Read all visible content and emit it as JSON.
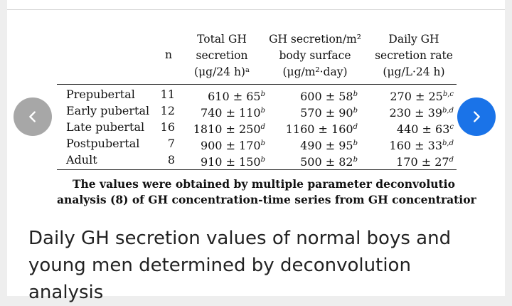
{
  "table": {
    "columns": [
      {
        "key": "n",
        "lines": [
          "n"
        ]
      },
      {
        "key": "total",
        "lines": [
          "Total GH",
          "secretion",
          "(μg/24 h)ᵃ"
        ]
      },
      {
        "key": "area",
        "lines": [
          "GH secretion/m²",
          "body surface",
          "(μg/m²·day)"
        ]
      },
      {
        "key": "rate",
        "lines": [
          "Daily GH",
          "secretion rate",
          "(μg/L·24 h)"
        ]
      }
    ],
    "rows": [
      {
        "group": "Prepubertal",
        "n": "11",
        "total": "610 ± 65",
        "total_sup": "b",
        "area": "600 ± 58",
        "area_sup": "b",
        "rate": "270 ± 25",
        "rate_sup": "b,c"
      },
      {
        "group": "Early pubertal",
        "n": "12",
        "total": "740 ± 110",
        "total_sup": "b",
        "area": "570 ± 90",
        "area_sup": "b",
        "rate": "230 ± 39",
        "rate_sup": "b,d"
      },
      {
        "group": "Late pubertal",
        "n": "16",
        "total": "1810 ± 250",
        "total_sup": "d",
        "area": "1160 ± 160",
        "area_sup": "d",
        "rate": "440 ± 63",
        "rate_sup": "c"
      },
      {
        "group": "Postpubertal",
        "n": "7",
        "total": "900 ± 170",
        "total_sup": "b",
        "area": "490 ± 95",
        "area_sup": "b",
        "rate": "160 ± 33",
        "rate_sup": "b,d"
      },
      {
        "group": "Adult",
        "n": "8",
        "total": "910 ± 150",
        "total_sup": "b",
        "area": "500 ± 82",
        "area_sup": "b",
        "rate": "170 ± 27",
        "rate_sup": "d"
      }
    ],
    "footnote_line1": "The values were obtained by multiple parameter deconvolutio",
    "footnote_line2": "analysis (8) of GH concentration-time series from GH concentratior"
  },
  "caption": "Daily GH secretion values of normal boys and young men determined by deconvolution analysis",
  "nav": {
    "prev_icon": "chevron-left-icon",
    "next_icon": "chevron-right-icon",
    "next_color": "#1a73e8",
    "prev_color": "#a7a7a7"
  }
}
